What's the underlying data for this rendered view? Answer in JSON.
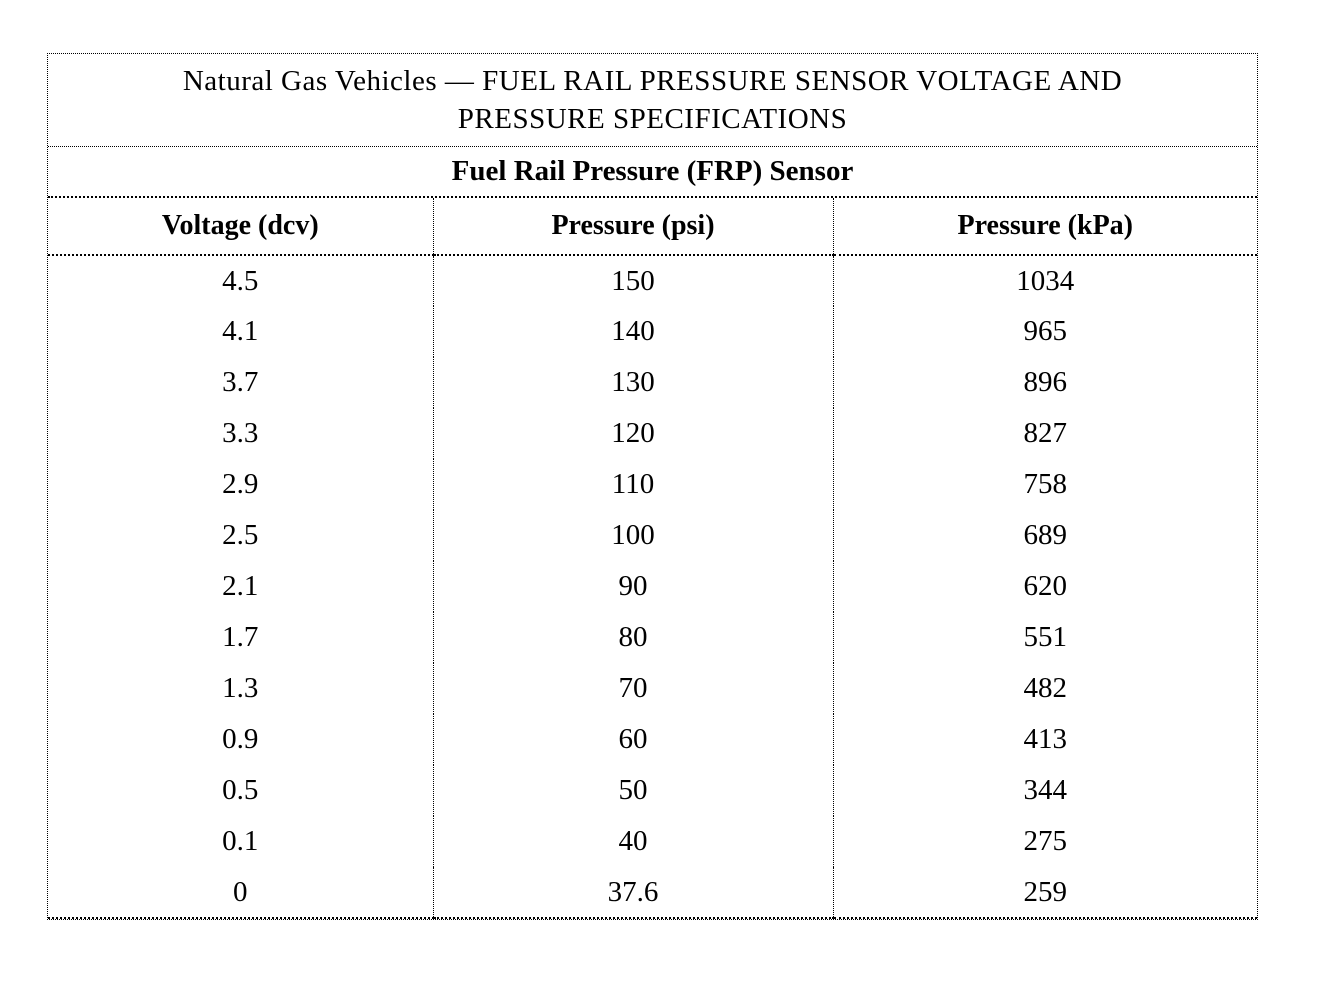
{
  "table": {
    "title_line1": "Natural Gas Vehicles — FUEL RAIL PRESSURE SENSOR VOLTAGE AND",
    "title_line2": "PRESSURE SPECIFICATIONS",
    "subtitle": "Fuel Rail Pressure (FRP) Sensor",
    "columns": [
      "Voltage (dcv)",
      "Pressure (psi)",
      "Pressure (kPa)"
    ],
    "rows": [
      [
        "4.5",
        "150",
        "1034"
      ],
      [
        "4.1",
        "140",
        "965"
      ],
      [
        "3.7",
        "130",
        "896"
      ],
      [
        "3.3",
        "120",
        "827"
      ],
      [
        "2.9",
        "110",
        "758"
      ],
      [
        "2.5",
        "100",
        "689"
      ],
      [
        "2.1",
        "90",
        "620"
      ],
      [
        "1.7",
        "80",
        "551"
      ],
      [
        "1.3",
        "70",
        "482"
      ],
      [
        "0.9",
        "60",
        "413"
      ],
      [
        "0.5",
        "50",
        "344"
      ],
      [
        "0.1",
        "40",
        "275"
      ],
      [
        "0",
        "37.6",
        "259"
      ]
    ]
  },
  "colors": {
    "background": "#ffffff",
    "text": "#000000",
    "border": "#000000"
  }
}
